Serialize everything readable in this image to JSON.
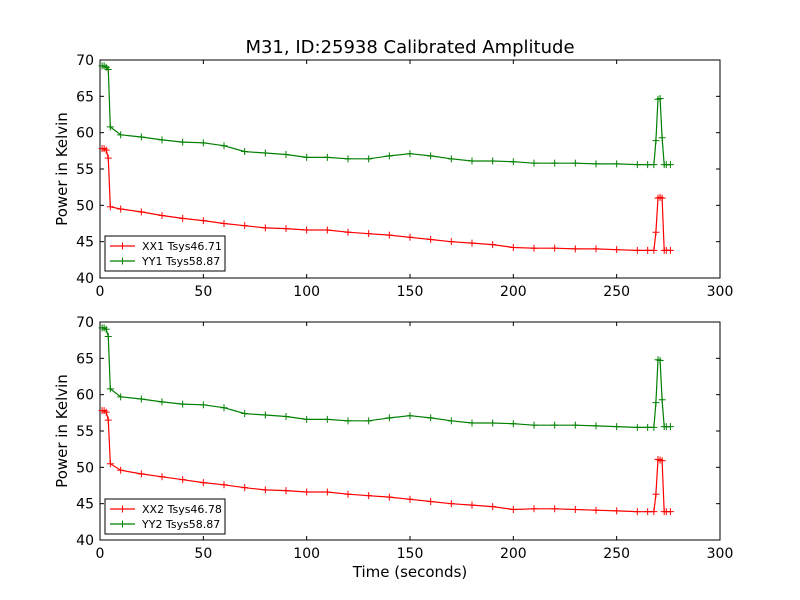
{
  "figure_title": "M31, ID:25938 Calibrated Amplitude",
  "colors": {
    "xx": "#ff0000",
    "yy": "#008000",
    "axes": "#000000"
  },
  "chart_data": [
    {
      "type": "line",
      "title": "M31, ID:25938 Calibrated Amplitude",
      "xlabel": "",
      "ylabel": "Power in Kelvin",
      "xlim": [
        0,
        300
      ],
      "ylim": [
        40,
        70
      ],
      "xticks": [
        0,
        50,
        100,
        150,
        200,
        250,
        300
      ],
      "yticks": [
        40,
        45,
        50,
        55,
        60,
        65,
        70
      ],
      "grid": false,
      "legend_position": "lower-left",
      "series": [
        {
          "name": "XX1 Tsys46.71",
          "color": "#ff0000",
          "x": [
            1,
            2,
            3,
            4,
            5,
            10,
            20,
            30,
            40,
            50,
            60,
            70,
            80,
            90,
            100,
            110,
            120,
            130,
            140,
            150,
            160,
            170,
            180,
            190,
            200,
            210,
            220,
            230,
            240,
            250,
            260,
            265,
            268,
            269,
            270,
            271,
            272,
            273,
            274,
            276
          ],
          "y": [
            57.8,
            57.8,
            57.6,
            56.5,
            49.8,
            49.5,
            49.1,
            48.6,
            48.2,
            47.9,
            47.5,
            47.2,
            46.9,
            46.8,
            46.6,
            46.6,
            46.3,
            46.1,
            45.9,
            45.6,
            45.3,
            45.0,
            44.8,
            44.6,
            44.2,
            44.1,
            44.1,
            44.0,
            44.0,
            43.9,
            43.8,
            43.8,
            43.8,
            46.3,
            51.0,
            51.1,
            51.0,
            43.8,
            43.8,
            43.8
          ]
        },
        {
          "name": "YY1 Tsys58.87",
          "color": "#008000",
          "x": [
            1,
            2,
            3,
            4,
            5,
            10,
            20,
            30,
            40,
            50,
            60,
            70,
            80,
            90,
            100,
            110,
            120,
            130,
            140,
            150,
            160,
            170,
            180,
            190,
            200,
            210,
            220,
            230,
            240,
            250,
            260,
            265,
            268,
            269,
            270,
            271,
            272,
            273,
            274,
            276
          ],
          "y": [
            69.2,
            69.2,
            69.0,
            68.7,
            60.8,
            59.7,
            59.4,
            59.0,
            58.7,
            58.6,
            58.2,
            57.4,
            57.2,
            57.0,
            56.6,
            56.6,
            56.4,
            56.4,
            56.8,
            57.1,
            56.8,
            56.4,
            56.1,
            56.1,
            56.0,
            55.8,
            55.8,
            55.8,
            55.7,
            55.7,
            55.6,
            55.6,
            55.6,
            58.9,
            64.6,
            64.7,
            59.3,
            55.6,
            55.6,
            55.6
          ]
        }
      ]
    },
    {
      "type": "line",
      "title": "",
      "xlabel": "Time (seconds)",
      "ylabel": "Power in Kelvin",
      "xlim": [
        0,
        300
      ],
      "ylim": [
        40,
        70
      ],
      "xticks": [
        0,
        50,
        100,
        150,
        200,
        250,
        300
      ],
      "yticks": [
        40,
        45,
        50,
        55,
        60,
        65,
        70
      ],
      "grid": false,
      "legend_position": "lower-left",
      "series": [
        {
          "name": "XX2 Tsys46.78",
          "color": "#ff0000",
          "x": [
            1,
            2,
            3,
            4,
            5,
            10,
            20,
            30,
            40,
            50,
            60,
            70,
            80,
            90,
            100,
            110,
            120,
            130,
            140,
            150,
            160,
            170,
            180,
            190,
            200,
            210,
            220,
            230,
            240,
            250,
            260,
            265,
            268,
            269,
            270,
            271,
            272,
            273,
            274,
            276
          ],
          "y": [
            57.8,
            57.8,
            57.6,
            56.5,
            50.5,
            49.6,
            49.1,
            48.7,
            48.3,
            47.9,
            47.6,
            47.2,
            46.9,
            46.8,
            46.6,
            46.6,
            46.3,
            46.1,
            45.9,
            45.6,
            45.3,
            45.0,
            44.8,
            44.6,
            44.2,
            44.3,
            44.3,
            44.2,
            44.1,
            44.0,
            43.9,
            43.9,
            43.9,
            46.3,
            51.1,
            51.0,
            50.9,
            43.9,
            43.9,
            43.9
          ]
        },
        {
          "name": "YY2 Tsys58.87",
          "color": "#008000",
          "x": [
            1,
            2,
            3,
            4,
            5,
            10,
            20,
            30,
            40,
            50,
            60,
            70,
            80,
            90,
            100,
            110,
            120,
            130,
            140,
            150,
            160,
            170,
            180,
            190,
            200,
            210,
            220,
            230,
            240,
            250,
            260,
            265,
            268,
            269,
            270,
            271,
            272,
            273,
            274,
            276
          ],
          "y": [
            69.2,
            69.2,
            69.0,
            68.0,
            60.8,
            59.7,
            59.4,
            59.0,
            58.7,
            58.6,
            58.2,
            57.4,
            57.2,
            57.0,
            56.6,
            56.6,
            56.4,
            56.4,
            56.8,
            57.1,
            56.8,
            56.4,
            56.1,
            56.1,
            56.0,
            55.8,
            55.8,
            55.8,
            55.7,
            55.6,
            55.5,
            55.5,
            55.5,
            58.9,
            64.8,
            64.7,
            59.3,
            55.6,
            55.6,
            55.6
          ]
        }
      ]
    }
  ]
}
